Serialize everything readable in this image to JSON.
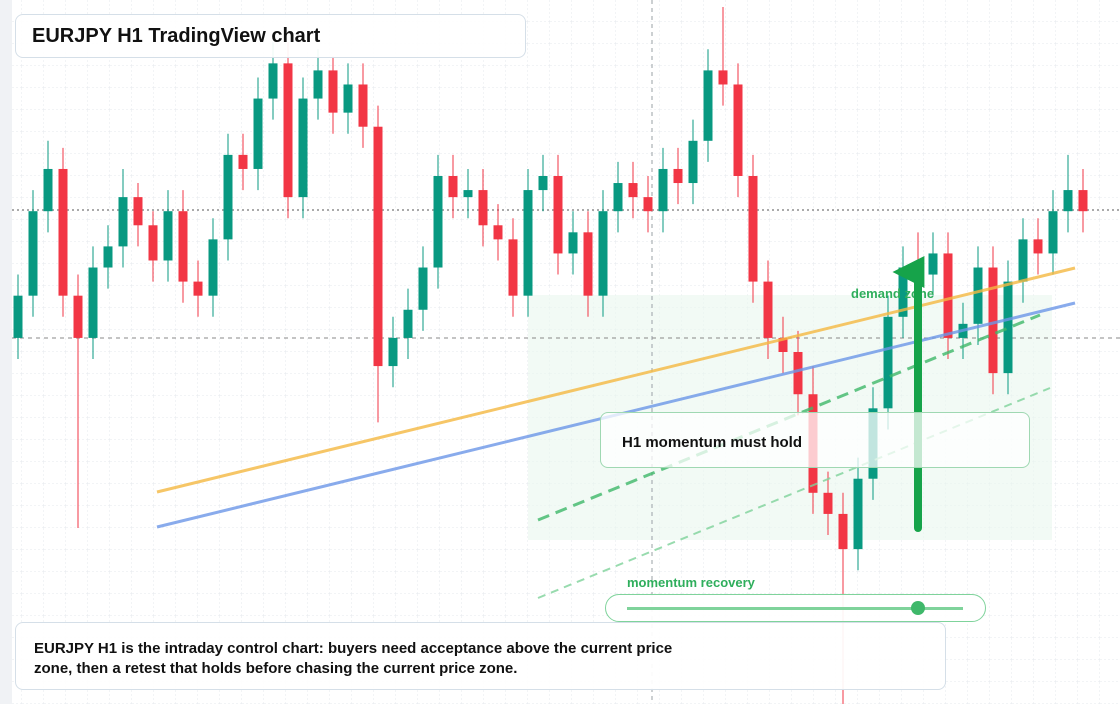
{
  "header": {
    "title": "EURJPY H1 TradingView chart"
  },
  "labels": {
    "demand": "demand zone",
    "callout": "H1 momentum must hold",
    "slider": "momentum recovery"
  },
  "note": {
    "text": "EURJPY H1 is the intraday control chart: buyers need acceptance above the current price zone, then a retest that holds before chasing the current price zone."
  },
  "chart_data": {
    "type": "candlestick",
    "up_color": "#089981",
    "down_color": "#f23645",
    "ylim": [
      0,
      100
    ],
    "open": [
      52,
      58,
      70,
      76,
      58,
      52,
      62,
      65,
      72,
      68,
      63,
      70,
      60,
      58,
      66,
      78,
      76,
      86,
      91,
      72,
      86,
      90,
      84,
      88,
      82,
      48,
      52,
      56,
      62,
      75,
      72,
      73,
      68,
      66,
      58,
      73,
      75,
      64,
      67,
      58,
      70,
      74,
      72,
      70,
      76,
      74,
      80,
      90,
      88,
      75,
      60,
      52,
      50,
      44,
      30,
      27,
      22,
      32,
      42,
      55,
      62,
      61,
      64,
      52,
      54,
      62,
      47,
      60,
      66,
      64,
      70,
      73
    ],
    "high": [
      61,
      73,
      80,
      79,
      61,
      65,
      68,
      76,
      74,
      70,
      73,
      73,
      63,
      69,
      81,
      81,
      89,
      94,
      94,
      89,
      93,
      92,
      91,
      91,
      85,
      55,
      59,
      65,
      78,
      78,
      76,
      76,
      71,
      69,
      76,
      78,
      78,
      70,
      70,
      73,
      77,
      77,
      75,
      79,
      79,
      83,
      93,
      99,
      91,
      78,
      63,
      55,
      53,
      48,
      33,
      30,
      35,
      45,
      58,
      65,
      67,
      67,
      67,
      57,
      65,
      65,
      63,
      69,
      69,
      73,
      78,
      76
    ],
    "low": [
      49,
      55,
      67,
      55,
      25,
      49,
      59,
      62,
      65,
      60,
      60,
      57,
      55,
      55,
      63,
      73,
      73,
      83,
      69,
      69,
      83,
      81,
      81,
      79,
      40,
      45,
      49,
      53,
      59,
      69,
      69,
      65,
      63,
      55,
      55,
      70,
      61,
      61,
      55,
      55,
      67,
      69,
      67,
      67,
      71,
      71,
      77,
      85,
      72,
      57,
      49,
      47,
      41,
      27,
      24,
      0,
      19,
      29,
      39,
      52,
      58,
      58,
      49,
      49,
      51,
      44,
      44,
      57,
      61,
      61,
      67,
      67
    ],
    "close": [
      58,
      70,
      76,
      58,
      52,
      62,
      65,
      72,
      68,
      63,
      70,
      60,
      58,
      66,
      78,
      76,
      86,
      91,
      72,
      86,
      90,
      84,
      88,
      82,
      48,
      52,
      56,
      62,
      75,
      72,
      73,
      68,
      66,
      58,
      73,
      75,
      64,
      67,
      58,
      70,
      74,
      72,
      70,
      76,
      74,
      80,
      90,
      88,
      75,
      60,
      52,
      50,
      44,
      30,
      27,
      22,
      32,
      42,
      55,
      62,
      61,
      64,
      52,
      54,
      62,
      47,
      60,
      66,
      64,
      70,
      73,
      70
    ]
  }
}
